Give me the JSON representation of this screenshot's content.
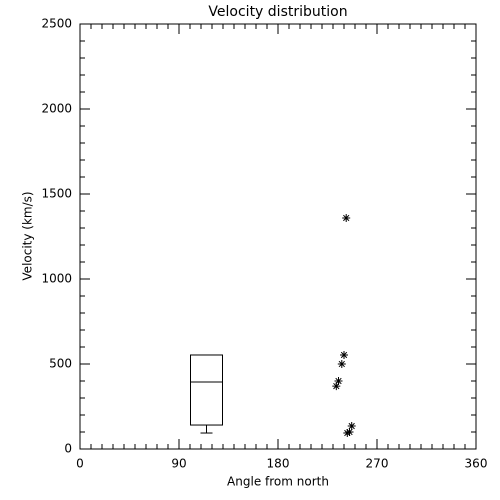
{
  "chart_data": {
    "type": "box",
    "title": "Velocity distribution",
    "x_label": "Angle from north",
    "y_label": "Velocity (km/s)",
    "xlim": [
      0,
      360
    ],
    "xticks": [
      0,
      90,
      180,
      270,
      360
    ],
    "ylim": [
      0,
      2500
    ],
    "yticks": [
      0,
      500,
      1000,
      1500,
      2000,
      2500
    ],
    "box": {
      "x": 115,
      "q1": 141,
      "median": 394,
      "q3": 553,
      "whisker_low": 94,
      "whisker_high": 553
    },
    "points": {
      "x": [
        242,
        240,
        238,
        235,
        233,
        247,
        245,
        243
      ],
      "values": [
        1359,
        553,
        500,
        400,
        370,
        135,
        100,
        94
      ]
    }
  }
}
